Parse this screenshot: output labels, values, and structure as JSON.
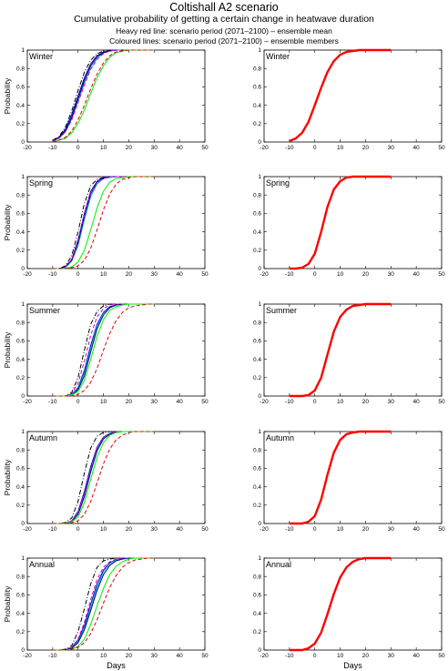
{
  "header": {
    "title": "Coltishall A2 scenario",
    "subtitle": "Cumulative probability of getting a certain change in heatwave duration",
    "note1": "Heavy red line: scenario period (2071–2100) – ensemble mean",
    "note2": "Coloured lines: scenario period (2071–2100) – ensemble members"
  },
  "chart_data": {
    "type": "line",
    "xlabel": "Days",
    "ylabel": "Probability",
    "xlim": [
      -20,
      50
    ],
    "ylim": [
      0,
      1
    ],
    "xticks": [
      -20,
      -10,
      0,
      10,
      20,
      30,
      40,
      50
    ],
    "yticks": [
      0,
      0.2,
      0.4,
      0.6,
      0.8,
      1
    ],
    "x": [
      -10,
      -7.5,
      -5,
      -2.5,
      0,
      2.5,
      5,
      7.5,
      10,
      12.5,
      15,
      17.5,
      20,
      22.5,
      25,
      27.5,
      30
    ],
    "line_colors": {
      "mean": "#ff0000",
      "blue": "#0000cc",
      "green": "#00ee00",
      "black": "#000000",
      "red_dash": "#dd0000",
      "magenta": "#cc00cc",
      "cyan": "#00bbbb",
      "navy": "#000080"
    },
    "panels": [
      {
        "label": "Winter",
        "ensemble_mean": [
          0.01,
          0.04,
          0.1,
          0.22,
          0.4,
          0.59,
          0.76,
          0.88,
          0.95,
          0.98,
          0.99,
          1,
          1,
          1,
          1,
          1,
          1
        ],
        "members": [
          {
            "color": "black",
            "style": "dashdot",
            "y": [
              0.02,
              0.06,
              0.16,
              0.34,
              0.56,
              0.76,
              0.89,
              0.96,
              0.99,
              1,
              1,
              1,
              1,
              1,
              1,
              1,
              1
            ]
          },
          {
            "color": "blue",
            "style": "solid",
            "y": [
              0.01,
              0.05,
              0.14,
              0.3,
              0.5,
              0.7,
              0.85,
              0.94,
              0.98,
              0.99,
              1,
              1,
              1,
              1,
              1,
              1,
              1
            ]
          },
          {
            "color": "cyan",
            "style": "solid",
            "y": [
              0.01,
              0.04,
              0.11,
              0.25,
              0.44,
              0.64,
              0.8,
              0.91,
              0.97,
              0.99,
              1,
              1,
              1,
              1,
              1,
              1,
              1
            ]
          },
          {
            "color": "navy",
            "style": "solid",
            "y": [
              0.01,
              0.05,
              0.12,
              0.27,
              0.47,
              0.67,
              0.83,
              0.93,
              0.97,
              0.99,
              1,
              1,
              1,
              1,
              1,
              1,
              1
            ]
          },
          {
            "color": "magenta",
            "style": "dashed",
            "y": [
              0.01,
              0.04,
              0.11,
              0.24,
              0.43,
              0.62,
              0.79,
              0.9,
              0.96,
              0.99,
              1,
              1,
              1,
              1,
              1,
              1,
              1
            ]
          },
          {
            "color": "green",
            "style": "solid",
            "y": [
              0,
              0.02,
              0.04,
              0.1,
              0.2,
              0.35,
              0.53,
              0.7,
              0.83,
              0.92,
              0.97,
              0.99,
              1,
              1,
              1,
              1,
              1
            ]
          },
          {
            "color": "red_dash",
            "style": "dashed",
            "y": [
              0,
              0.02,
              0.05,
              0.12,
              0.24,
              0.4,
              0.58,
              0.74,
              0.86,
              0.94,
              0.98,
              0.99,
              1,
              1,
              1,
              1,
              1
            ]
          }
        ]
      },
      {
        "label": "Spring",
        "ensemble_mean": [
          0,
          0,
          0.01,
          0.05,
          0.16,
          0.4,
          0.67,
          0.86,
          0.95,
          0.99,
          1,
          1,
          1,
          1,
          1,
          1,
          1
        ],
        "members": [
          {
            "color": "black",
            "style": "dashdot",
            "y": [
              0,
              0,
              0.03,
              0.14,
              0.4,
              0.71,
              0.9,
              0.97,
              0.99,
              1,
              1,
              1,
              1,
              1,
              1,
              1,
              1
            ]
          },
          {
            "color": "blue",
            "style": "solid",
            "y": [
              0,
              0,
              0.02,
              0.1,
              0.31,
              0.6,
              0.84,
              0.95,
              0.99,
              1,
              1,
              1,
              1,
              1,
              1,
              1,
              1
            ]
          },
          {
            "color": "cyan",
            "style": "solid",
            "y": [
              0,
              0,
              0.01,
              0.08,
              0.25,
              0.53,
              0.78,
              0.92,
              0.98,
              0.99,
              1,
              1,
              1,
              1,
              1,
              1,
              1
            ]
          },
          {
            "color": "navy",
            "style": "solid",
            "y": [
              0,
              0,
              0.02,
              0.09,
              0.28,
              0.57,
              0.81,
              0.94,
              0.98,
              1,
              1,
              1,
              1,
              1,
              1,
              1,
              1
            ]
          },
          {
            "color": "magenta",
            "style": "dashed",
            "y": [
              0,
              0,
              0.02,
              0.1,
              0.3,
              0.59,
              0.82,
              0.94,
              0.98,
              1,
              1,
              1,
              1,
              1,
              1,
              1,
              1
            ]
          },
          {
            "color": "green",
            "style": "solid",
            "y": [
              0,
              0,
              0,
              0.02,
              0.07,
              0.2,
              0.42,
              0.66,
              0.84,
              0.94,
              0.98,
              0.99,
              1,
              1,
              1,
              1,
              1
            ]
          },
          {
            "color": "red_dash",
            "style": "dashed",
            "y": [
              0,
              0,
              0,
              0.01,
              0.03,
              0.09,
              0.22,
              0.42,
              0.64,
              0.81,
              0.92,
              0.97,
              0.99,
              1,
              1,
              1,
              1
            ]
          }
        ]
      },
      {
        "label": "Summer",
        "ensemble_mean": [
          0,
          0,
          0,
          0.01,
          0.06,
          0.2,
          0.45,
          0.7,
          0.86,
          0.94,
          0.98,
          0.99,
          1,
          1,
          1,
          1,
          1
        ],
        "members": [
          {
            "color": "black",
            "style": "dashdot",
            "y": [
              0,
              0,
              0,
              0.04,
              0.2,
              0.5,
              0.78,
              0.92,
              0.98,
              1,
              1,
              1,
              1,
              1,
              1,
              1,
              1
            ]
          },
          {
            "color": "blue",
            "style": "solid",
            "y": [
              0,
              0,
              0,
              0.02,
              0.09,
              0.28,
              0.55,
              0.78,
              0.91,
              0.97,
              0.99,
              1,
              1,
              1,
              1,
              1,
              1
            ]
          },
          {
            "color": "cyan",
            "style": "solid",
            "y": [
              0,
              0,
              0,
              0.02,
              0.08,
              0.25,
              0.52,
              0.76,
              0.9,
              0.96,
              0.99,
              1,
              1,
              1,
              1,
              1,
              1
            ]
          },
          {
            "color": "navy",
            "style": "solid",
            "y": [
              0,
              0,
              0,
              0.01,
              0.07,
              0.22,
              0.48,
              0.73,
              0.88,
              0.96,
              0.99,
              1,
              1,
              1,
              1,
              1,
              1
            ]
          },
          {
            "color": "magenta",
            "style": "dashed",
            "y": [
              0,
              0,
              0,
              0.03,
              0.14,
              0.38,
              0.66,
              0.86,
              0.95,
              0.99,
              1,
              1,
              1,
              1,
              1,
              1,
              1
            ]
          },
          {
            "color": "green",
            "style": "solid",
            "y": [
              0,
              0,
              0,
              0.01,
              0.05,
              0.17,
              0.4,
              0.65,
              0.83,
              0.93,
              0.97,
              0.99,
              1,
              1,
              1,
              1,
              1
            ]
          },
          {
            "color": "red_dash",
            "style": "dashed",
            "y": [
              0,
              0,
              0,
              0,
              0.02,
              0.06,
              0.15,
              0.3,
              0.5,
              0.68,
              0.82,
              0.91,
              0.96,
              0.98,
              0.99,
              1,
              1
            ]
          }
        ]
      },
      {
        "label": "Autumn",
        "ensemble_mean": [
          0,
          0,
          0,
          0.02,
          0.08,
          0.26,
          0.53,
          0.77,
          0.91,
          0.97,
          0.99,
          1,
          1,
          1,
          1,
          1,
          1
        ],
        "members": [
          {
            "color": "black",
            "style": "dashdot",
            "y": [
              0,
              0,
              0.01,
              0.06,
              0.24,
              0.55,
              0.82,
              0.95,
              0.99,
              1,
              1,
              1,
              1,
              1,
              1,
              1,
              1
            ]
          },
          {
            "color": "blue",
            "style": "solid",
            "y": [
              0,
              0,
              0,
              0.03,
              0.13,
              0.35,
              0.62,
              0.83,
              0.94,
              0.98,
              1,
              1,
              1,
              1,
              1,
              1,
              1
            ]
          },
          {
            "color": "cyan",
            "style": "solid",
            "y": [
              0,
              0,
              0,
              0.03,
              0.11,
              0.31,
              0.58,
              0.8,
              0.93,
              0.98,
              0.99,
              1,
              1,
              1,
              1,
              1,
              1
            ]
          },
          {
            "color": "navy",
            "style": "solid",
            "y": [
              0,
              0,
              0,
              0.02,
              0.1,
              0.29,
              0.56,
              0.79,
              0.92,
              0.97,
              0.99,
              1,
              1,
              1,
              1,
              1,
              1
            ]
          },
          {
            "color": "magenta",
            "style": "dashed",
            "y": [
              0,
              0,
              0,
              0.03,
              0.12,
              0.33,
              0.6,
              0.82,
              0.94,
              0.98,
              1,
              1,
              1,
              1,
              1,
              1,
              1
            ]
          },
          {
            "color": "green",
            "style": "solid",
            "y": [
              0,
              0,
              0,
              0.02,
              0.07,
              0.23,
              0.48,
              0.72,
              0.88,
              0.96,
              0.99,
              1,
              1,
              1,
              1,
              1,
              1
            ]
          },
          {
            "color": "red_dash",
            "style": "dashed",
            "y": [
              0,
              0,
              0,
              0.01,
              0.03,
              0.1,
              0.24,
              0.44,
              0.65,
              0.81,
              0.91,
              0.96,
              0.99,
              1,
              1,
              1,
              1
            ]
          }
        ]
      },
      {
        "label": "Annual",
        "ensemble_mean": [
          0,
          0,
          0,
          0.02,
          0.07,
          0.19,
          0.39,
          0.61,
          0.79,
          0.9,
          0.96,
          0.99,
          1,
          1,
          1,
          1,
          1
        ],
        "members": [
          {
            "color": "black",
            "style": "dashdot",
            "y": [
              0,
              0,
              0.01,
              0.05,
              0.2,
              0.45,
              0.72,
              0.9,
              0.97,
              0.99,
              1,
              1,
              1,
              1,
              1,
              1,
              1
            ]
          },
          {
            "color": "blue",
            "style": "solid",
            "y": [
              0,
              0,
              0,
              0.03,
              0.11,
              0.27,
              0.5,
              0.72,
              0.87,
              0.95,
              0.98,
              1,
              1,
              1,
              1,
              1,
              1
            ]
          },
          {
            "color": "cyan",
            "style": "solid",
            "y": [
              0,
              0,
              0,
              0.02,
              0.09,
              0.24,
              0.46,
              0.68,
              0.85,
              0.94,
              0.98,
              0.99,
              1,
              1,
              1,
              1,
              1
            ]
          },
          {
            "color": "navy",
            "style": "solid",
            "y": [
              0,
              0,
              0,
              0.02,
              0.08,
              0.22,
              0.43,
              0.65,
              0.82,
              0.92,
              0.97,
              0.99,
              1,
              1,
              1,
              1,
              1
            ]
          },
          {
            "color": "magenta",
            "style": "dashed",
            "y": [
              0,
              0,
              0,
              0.03,
              0.12,
              0.3,
              0.55,
              0.77,
              0.9,
              0.96,
              0.99,
              1,
              1,
              1,
              1,
              1,
              1
            ]
          },
          {
            "color": "green",
            "style": "solid",
            "y": [
              0,
              0,
              0,
              0.01,
              0.04,
              0.12,
              0.28,
              0.48,
              0.67,
              0.82,
              0.91,
              0.96,
              0.99,
              1,
              1,
              1,
              1
            ]
          },
          {
            "color": "red_dash",
            "style": "dashed",
            "y": [
              0,
              0,
              0,
              0.01,
              0.03,
              0.08,
              0.18,
              0.33,
              0.51,
              0.68,
              0.81,
              0.9,
              0.95,
              0.98,
              0.99,
              1,
              1
            ]
          }
        ]
      }
    ]
  }
}
